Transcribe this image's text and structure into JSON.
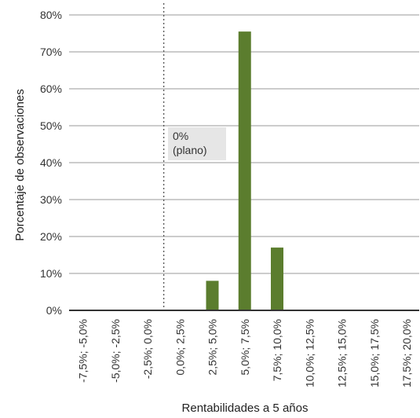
{
  "chart_data": {
    "type": "bar",
    "title": "",
    "xlabel": "Rentabilidades a 5 años",
    "ylabel": "Porcentaje de observaciones",
    "categories": [
      "-7,5%; -5,0%",
      "-5,0%; -2,5%",
      "-2,5%; 0,0%",
      "0,0%; 2,5%",
      "2,5%; 5,0%",
      "5,0%; 7,5%",
      "7,5%; 10,0%",
      "10,0%; 12,5%",
      "12,5%; 15,0%",
      "15,0%; 17,5%",
      "17,5%; 20,0%"
    ],
    "values": [
      0,
      0,
      0,
      0,
      8,
      75.5,
      17,
      0,
      0,
      0,
      0
    ],
    "ylim": [
      0,
      80
    ],
    "yticks": [
      "0%",
      "10%",
      "20%",
      "30%",
      "40%",
      "50%",
      "60%",
      "70%",
      "80%"
    ],
    "grid": true,
    "legend": "none",
    "bar_color": "#5b7d2e",
    "annotation": {
      "lines": [
        "0%",
        "(plano)"
      ],
      "marker": "dotted vertical line at 0%"
    }
  }
}
